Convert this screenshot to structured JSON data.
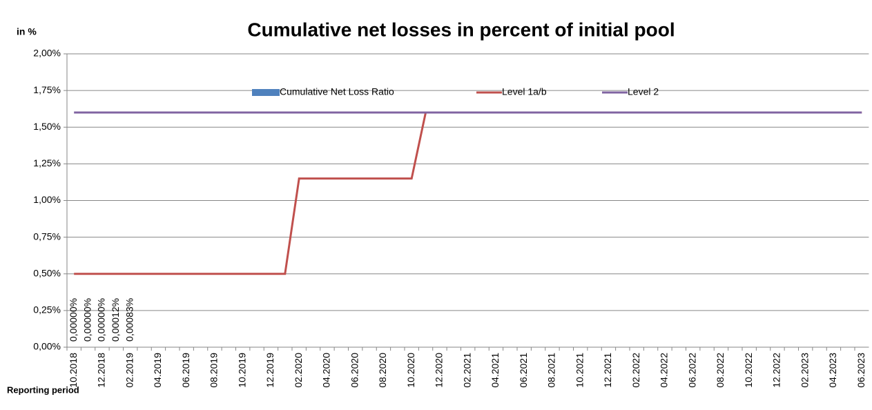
{
  "chart_data": {
    "type": "bar_line",
    "title": "Cumulative net losses in percent of initial pool",
    "y_axis_label": "in %",
    "x_axis_label": "Reporting period",
    "categories": [
      "10.2018",
      null,
      "12.2018",
      null,
      "02.2019",
      null,
      "04.2019",
      null,
      "06.2019",
      null,
      "08.2019",
      null,
      "10.2019",
      null,
      "12.2019",
      null,
      "02.2020",
      null,
      "04.2020",
      null,
      "06.2020",
      null,
      "08.2020",
      null,
      "10.2020",
      null,
      "12.2020",
      null,
      "02.2021",
      null,
      "04.2021",
      null,
      "06.2021",
      null,
      "08.2021",
      null,
      "10.2021",
      null,
      "12.2021",
      null,
      "02.2022",
      null,
      "04.2022",
      null,
      "06.2022",
      null,
      "08.2022",
      null,
      "10.2022",
      null,
      "12.2022",
      null,
      "02.2023",
      null,
      "04.2023",
      null,
      "06.2023"
    ],
    "ylim": [
      0,
      2
    ],
    "yticks": [
      {
        "value": 0,
        "label": "0,00%"
      },
      {
        "value": 0.25,
        "label": "0,25%"
      },
      {
        "value": 0.5,
        "label": "0,50%"
      },
      {
        "value": 0.75,
        "label": "0,75%"
      },
      {
        "value": 1,
        "label": "1,00%"
      },
      {
        "value": 1.25,
        "label": "1,25%"
      },
      {
        "value": 1.5,
        "label": "1,50%"
      },
      {
        "value": 1.75,
        "label": "1,75%"
      },
      {
        "value": 2,
        "label": "2,00%"
      }
    ],
    "grid": true,
    "legend": "top",
    "series": [
      {
        "name": "Cumulative Net Loss Ratio",
        "kind": "bar",
        "color": "#4f81bd",
        "values": [
          0,
          0,
          0,
          0.00012,
          0.00083,
          null,
          null,
          null,
          null,
          null,
          null,
          null,
          null,
          null,
          null,
          null,
          null,
          null,
          null,
          null,
          null,
          null,
          null,
          null,
          null,
          null,
          null,
          null,
          null,
          null,
          null,
          null,
          null,
          null,
          null,
          null,
          null,
          null,
          null,
          null,
          null,
          null,
          null,
          null,
          null,
          null,
          null,
          null,
          null,
          null,
          null,
          null,
          null,
          null,
          null,
          null,
          null
        ],
        "value_labels": [
          "0,00000%",
          "0,00000%",
          "0,00000%",
          "0,00012%",
          "0,00083%",
          null,
          null,
          null,
          null,
          null,
          null,
          null,
          null,
          null,
          null,
          null,
          null,
          null,
          null,
          null,
          null,
          null,
          null,
          null,
          null,
          null,
          null,
          null,
          null,
          null,
          null,
          null,
          null,
          null,
          null,
          null,
          null,
          null,
          null,
          null,
          null,
          null,
          null,
          null,
          null,
          null,
          null,
          null,
          null,
          null,
          null,
          null,
          null,
          null,
          null,
          null,
          null
        ]
      },
      {
        "name": "Level 1a/b",
        "kind": "line",
        "color": "#c0504d",
        "values": [
          0.5,
          0.5,
          0.5,
          0.5,
          0.5,
          0.5,
          0.5,
          0.5,
          0.5,
          0.5,
          0.5,
          0.5,
          0.5,
          0.5,
          0.5,
          0.5,
          1.15,
          1.15,
          1.15,
          1.15,
          1.15,
          1.15,
          1.15,
          1.15,
          1.15,
          1.6,
          1.6,
          1.6,
          1.6,
          1.6,
          1.6,
          1.6,
          1.6,
          1.6,
          1.6,
          1.6,
          1.6,
          1.6,
          1.6,
          1.6,
          1.6,
          1.6,
          1.6,
          1.6,
          1.6,
          1.6,
          1.6,
          1.6,
          1.6,
          1.6,
          1.6,
          1.6,
          1.6,
          1.6,
          1.6,
          1.6,
          1.6
        ]
      },
      {
        "name": "Level 2",
        "kind": "line",
        "color": "#8064a2",
        "values": [
          1.6,
          1.6,
          1.6,
          1.6,
          1.6,
          1.6,
          1.6,
          1.6,
          1.6,
          1.6,
          1.6,
          1.6,
          1.6,
          1.6,
          1.6,
          1.6,
          1.6,
          1.6,
          1.6,
          1.6,
          1.6,
          1.6,
          1.6,
          1.6,
          1.6,
          1.6,
          1.6,
          1.6,
          1.6,
          1.6,
          1.6,
          1.6,
          1.6,
          1.6,
          1.6,
          1.6,
          1.6,
          1.6,
          1.6,
          1.6,
          1.6,
          1.6,
          1.6,
          1.6,
          1.6,
          1.6,
          1.6,
          1.6,
          1.6,
          1.6,
          1.6,
          1.6,
          1.6,
          1.6,
          1.6,
          1.6,
          1.6
        ]
      }
    ]
  }
}
